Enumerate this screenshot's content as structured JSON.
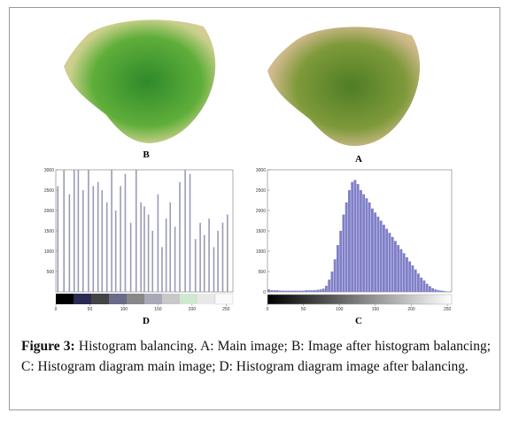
{
  "images": [
    {
      "label": "B"
    },
    {
      "label": "A"
    }
  ],
  "chart_data": [
    {
      "type": "bar",
      "title": "D",
      "color": "#9a9ab8",
      "x": [
        3,
        12,
        20,
        27,
        33,
        40,
        48,
        55,
        62,
        68,
        75,
        82,
        88,
        95,
        102,
        110,
        118,
        125,
        130,
        136,
        142,
        150,
        156,
        162,
        168,
        175,
        182,
        190,
        197,
        205,
        212,
        218,
        225,
        232,
        238,
        245,
        252
      ],
      "values": [
        2600,
        3000,
        2400,
        3000,
        3000,
        2500,
        3000,
        2600,
        2700,
        2500,
        2200,
        3000,
        2000,
        2600,
        2900,
        1700,
        3000,
        2200,
        2100,
        1900,
        1500,
        2400,
        1100,
        1800,
        2200,
        1600,
        2700,
        3000,
        2900,
        1300,
        1700,
        1400,
        1800,
        1100,
        1500,
        1700,
        1900
      ],
      "xlim": [
        0,
        260
      ],
      "ylim": [
        0,
        3000
      ],
      "xticks": [
        0,
        50,
        100,
        150,
        200,
        250
      ],
      "yticks": [
        500,
        1000,
        1500,
        2000,
        2500,
        3000
      ]
    },
    {
      "type": "histogram",
      "title": "C",
      "color": "#7f7fc8",
      "x": [
        0,
        4,
        8,
        12,
        16,
        20,
        24,
        28,
        32,
        36,
        40,
        44,
        48,
        52,
        56,
        60,
        64,
        68,
        72,
        76,
        80,
        84,
        88,
        92,
        96,
        100,
        104,
        108,
        112,
        116,
        120,
        124,
        128,
        132,
        136,
        140,
        144,
        148,
        152,
        156,
        160,
        164,
        168,
        172,
        176,
        180,
        184,
        188,
        192,
        196,
        200,
        204,
        208,
        212,
        216,
        220,
        224,
        228,
        232,
        236,
        240,
        244,
        248,
        252
      ],
      "values": [
        60,
        40,
        40,
        40,
        30,
        30,
        30,
        30,
        30,
        30,
        30,
        30,
        30,
        40,
        40,
        40,
        40,
        50,
        60,
        80,
        150,
        300,
        500,
        800,
        1150,
        1500,
        1900,
        2200,
        2500,
        2700,
        2750,
        2650,
        2500,
        2400,
        2300,
        2200,
        2050,
        1950,
        1850,
        1750,
        1650,
        1550,
        1450,
        1350,
        1250,
        1150,
        1050,
        950,
        850,
        750,
        650,
        550,
        450,
        350,
        280,
        200,
        140,
        90,
        60,
        40,
        30,
        20,
        10,
        10
      ],
      "xlim": [
        0,
        256
      ],
      "ylim": [
        0,
        3000
      ],
      "xticks": [
        0,
        50,
        100,
        150,
        200,
        250
      ],
      "yticks": [
        0,
        500,
        1000,
        1500,
        2000,
        2500,
        3000
      ]
    }
  ],
  "caption": {
    "label": "Figure 3:",
    "text": " Histogram balancing.  A: Main image; B: Image after histogram balancing; C: Histogram diagram main image; D: Histogram diagram image after balancing."
  }
}
